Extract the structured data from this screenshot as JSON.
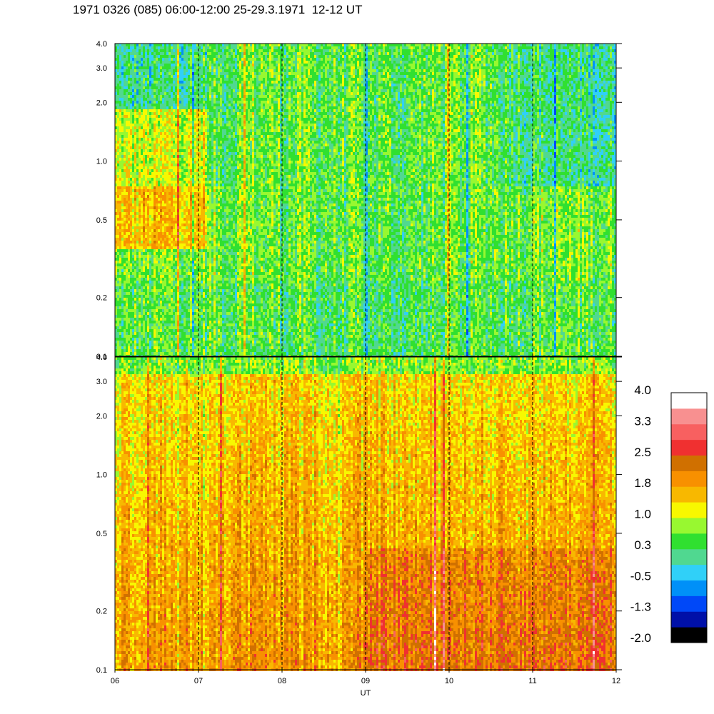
{
  "title": "1971 0326 (085) 06:00-12:00 25-29.3.1971  12-12 UT",
  "chart_data": [
    {
      "type": "heatmap",
      "panel": "top",
      "x_axis": {
        "label": "UT",
        "ticks": [
          "06",
          "07",
          "08",
          "09",
          "10",
          "11",
          "12"
        ],
        "range": [
          6,
          12
        ]
      },
      "y_axis": {
        "scale": "log",
        "ticks": [
          "0.1",
          "0.2",
          "0.5",
          "1.0",
          "2.0",
          "3.0",
          "4.0"
        ],
        "tick_values": [
          0.1,
          0.2,
          0.5,
          1.0,
          2.0,
          3.0,
          4.0
        ],
        "range": [
          0.1,
          4.0
        ]
      },
      "grid": "vertical dashed lines at each hour",
      "dominant_level": [
        0.3,
        1.0
      ],
      "notes": "mostly green/yellow-green; cyan-blue patches at higher values; orange streaks near 06-07"
    },
    {
      "type": "heatmap",
      "panel": "bottom",
      "x_axis": {
        "label": "UT",
        "ticks": [
          "06",
          "07",
          "08",
          "09",
          "10",
          "11",
          "12"
        ],
        "range": [
          6,
          12
        ]
      },
      "y_axis": {
        "scale": "log",
        "ticks": [
          "0.1",
          "0.2",
          "0.5",
          "1.0",
          "2.0",
          "3.0",
          "4.0"
        ],
        "tick_values": [
          0.1,
          0.2,
          0.5,
          1.0,
          2.0,
          3.0,
          4.0
        ],
        "range": [
          0.1,
          4.0
        ]
      },
      "grid": "vertical dashed lines at each hour",
      "dominant_level": [
        1.0,
        2.2
      ],
      "notes": "mostly yellow/orange; green near top band; dark orange streaks"
    }
  ],
  "colorbar": {
    "labels": [
      "4.0",
      "3.3",
      "2.5",
      "1.8",
      "1.0",
      "0.3",
      "-0.5",
      "-1.3",
      "-2.0"
    ],
    "colors": [
      "#000000",
      "#0010a8",
      "#0048f8",
      "#0090f8",
      "#30d0f8",
      "#50d890",
      "#30e030",
      "#98f830",
      "#f8f800",
      "#f8b800",
      "#f89000",
      "#d07000",
      "#f03030",
      "#f86060",
      "#f89090",
      "#ffffff"
    ]
  },
  "xlabel": "UT"
}
